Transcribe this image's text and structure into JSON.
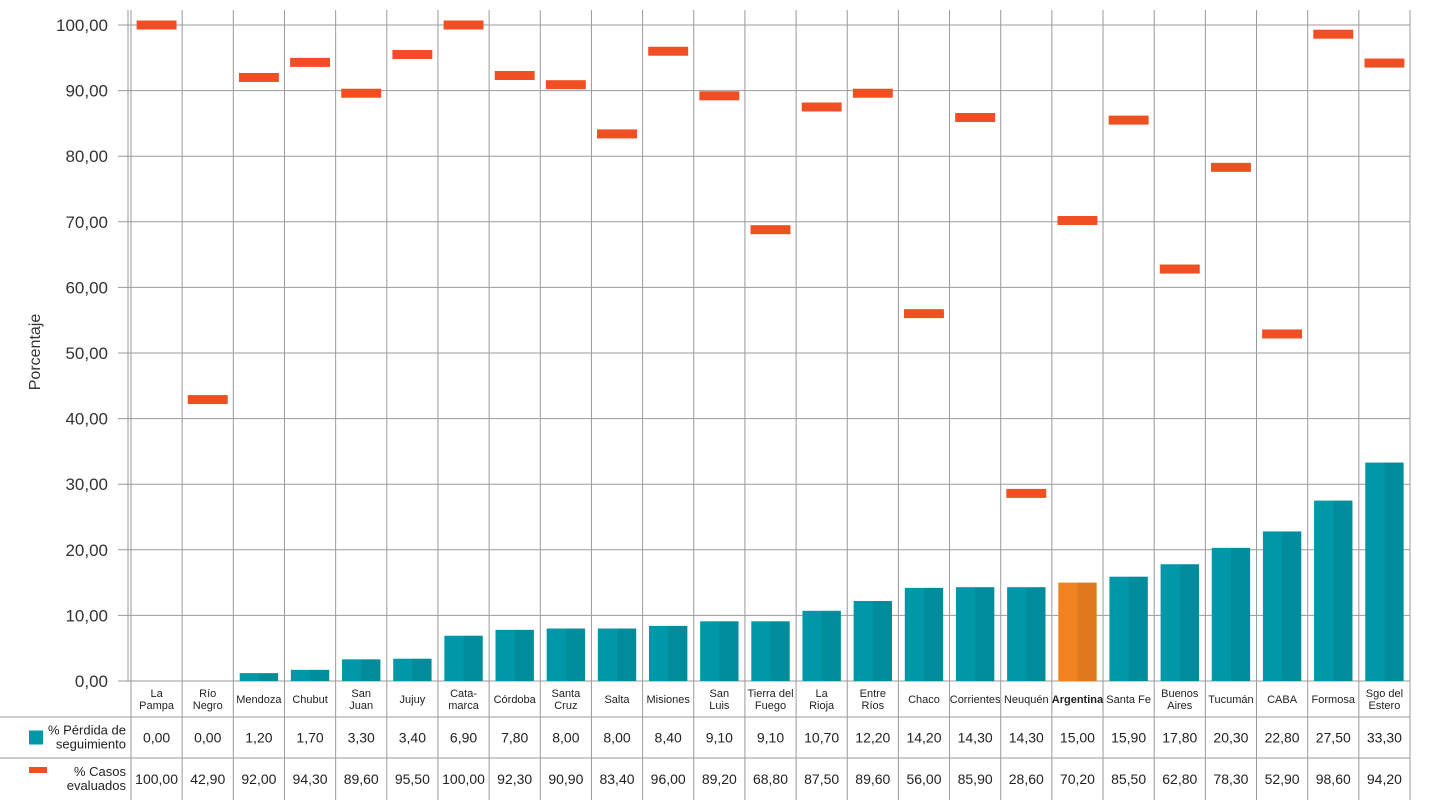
{
  "chart_data": {
    "type": "bar",
    "ylabel": "Porcentaje",
    "ylim": [
      0,
      100
    ],
    "yticks": [
      "0,00",
      "10,00",
      "20,00",
      "30,00",
      "40,00",
      "50,00",
      "60,00",
      "70,00",
      "80,00",
      "90,00",
      "100,00"
    ],
    "categories": [
      [
        "La",
        "Pampa"
      ],
      [
        "Río",
        "Negro"
      ],
      [
        "Mendoza"
      ],
      [
        "Chubut"
      ],
      [
        "San",
        "Juan"
      ],
      [
        "Jujuy"
      ],
      [
        "Cata-",
        "marca"
      ],
      [
        "Córdoba"
      ],
      [
        "Santa",
        "Cruz"
      ],
      [
        "Salta"
      ],
      [
        "Misiones"
      ],
      [
        "San",
        "Luis"
      ],
      [
        "Tierra del",
        "Fuego"
      ],
      [
        "La",
        "Rioja"
      ],
      [
        "Entre",
        "Ríos"
      ],
      [
        "Chaco"
      ],
      [
        "Corrientes"
      ],
      [
        "Neuquén"
      ],
      [
        "Argentina"
      ],
      [
        "Santa Fe"
      ],
      [
        "Buenos",
        "Aires"
      ],
      [
        "Tucumán"
      ],
      [
        "CABA"
      ],
      [
        "Formosa"
      ],
      [
        "Sgo del",
        "Estero"
      ]
    ],
    "highlight_index": 18,
    "series": [
      {
        "name": [
          "% Pérdida de",
          "seguimiento"
        ],
        "kind": "bar",
        "color": "#0098a8",
        "highlight_color": "#f28321",
        "values": [
          0,
          0,
          1.2,
          1.7,
          3.3,
          3.4,
          6.9,
          7.8,
          8.0,
          8.0,
          8.4,
          9.1,
          9.1,
          10.7,
          12.2,
          14.2,
          14.3,
          14.3,
          15.0,
          15.9,
          17.8,
          20.3,
          22.8,
          27.5,
          33.3
        ],
        "labels": [
          "0,00",
          "0,00",
          "1,20",
          "1,70",
          "3,30",
          "3,40",
          "6,90",
          "7,80",
          "8,00",
          "8,00",
          "8,40",
          "9,10",
          "9,10",
          "10,70",
          "12,20",
          "14,20",
          "14,30",
          "14,30",
          "15,00",
          "15,90",
          "17,80",
          "20,30",
          "22,80",
          "27,50",
          "33,30"
        ]
      },
      {
        "name": [
          "% Casos",
          "evaluados"
        ],
        "kind": "marker",
        "color": "#f04e23",
        "values": [
          100,
          42.9,
          92.0,
          94.3,
          89.6,
          95.5,
          100,
          92.3,
          90.9,
          83.4,
          96.0,
          89.2,
          68.8,
          87.5,
          89.6,
          56.0,
          85.9,
          28.6,
          70.2,
          85.5,
          62.8,
          78.3,
          52.9,
          98.6,
          94.2
        ],
        "labels": [
          "100,00",
          "42,90",
          "92,00",
          "94,30",
          "89,60",
          "95,50",
          "100,00",
          "92,30",
          "90,90",
          "83,40",
          "96,00",
          "89,20",
          "68,80",
          "87,50",
          "89,60",
          "56,00",
          "85,90",
          "28,60",
          "70,20",
          "85,50",
          "62,80",
          "78,30",
          "52,90",
          "98,60",
          "94,20"
        ]
      }
    ]
  }
}
